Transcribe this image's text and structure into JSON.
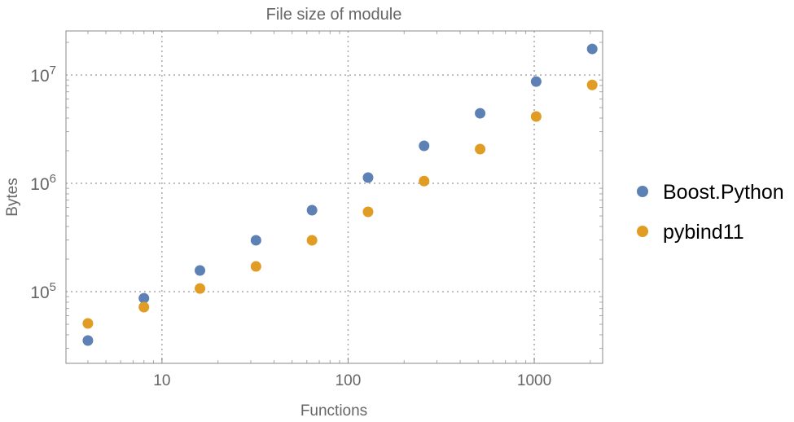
{
  "chart_data": {
    "type": "scatter",
    "title": "File size of module",
    "xlabel": "Functions",
    "ylabel": "Bytes",
    "x_scale": "log",
    "y_scale": "log",
    "xlim": [
      3.05,
      2330
    ],
    "ylim": [
      21800,
      25500000
    ],
    "grid": true,
    "legend_position": "right",
    "x_ticks": [
      {
        "value": 10,
        "label": "10"
      },
      {
        "value": 100,
        "label": "100"
      },
      {
        "value": 1000,
        "label": "1000"
      }
    ],
    "y_ticks": [
      {
        "value": 100000,
        "base": "10",
        "exp": "5"
      },
      {
        "value": 1000000,
        "base": "10",
        "exp": "6"
      },
      {
        "value": 10000000,
        "base": "10",
        "exp": "7"
      }
    ],
    "x": [
      4,
      8,
      16,
      32,
      64,
      128,
      256,
      512,
      1024,
      2048
    ],
    "series": [
      {
        "name": "Boost.Python",
        "color": "#5E81B5",
        "values": [
          35400,
          87000,
          157000,
          298000,
          565000,
          1130000,
          2220000,
          4430000,
          8700000,
          17400000
        ]
      },
      {
        "name": "pybind11",
        "color": "#E19C24",
        "values": [
          50900,
          72000,
          107000,
          171000,
          298000,
          546000,
          1050000,
          2070000,
          4140000,
          8100000
        ]
      }
    ]
  }
}
